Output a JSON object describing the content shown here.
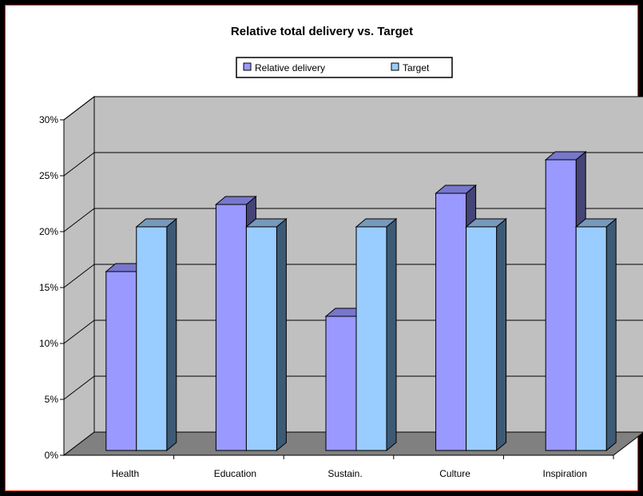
{
  "chart_data": {
    "type": "bar",
    "title": "Relative total delivery vs. Target",
    "categories": [
      "Health",
      "Education",
      "Sustain.",
      "Culture",
      "Inspiration"
    ],
    "series": [
      {
        "name": "Relative delivery",
        "values": [
          16,
          22,
          12,
          23,
          26
        ]
      },
      {
        "name": "Target",
        "values": [
          20,
          20,
          20,
          20,
          20
        ]
      }
    ],
    "yticks": [
      "0%",
      "5%",
      "10%",
      "15%",
      "20%",
      "25%",
      "30%"
    ],
    "ylim": [
      0,
      30
    ],
    "xlabel": "",
    "ylabel": "",
    "grid": true,
    "legend_position": "top",
    "three_d": true,
    "colors": {
      "relative_delivery_front": "#9999ff",
      "relative_delivery_top": "#7777cc",
      "relative_delivery_side": "#444477",
      "target_front": "#99ccff",
      "target_top": "#7799bb",
      "target_side": "#3d5a75",
      "wall": "#c0c0c0",
      "floor": "#808080",
      "frame_border": "#ff3300",
      "background": "#000000"
    }
  }
}
